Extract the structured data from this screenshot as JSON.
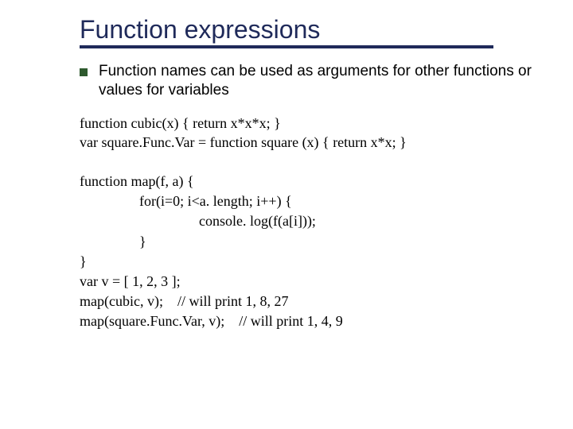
{
  "slide": {
    "title": "Function expressions",
    "bullet": {
      "text": "Function names can be used as arguments for other functions or values for variables"
    },
    "codeA": {
      "line1": "function cubic(x) { return x*x*x; }",
      "line2": "var square.Func.Var = function square (x) { return x*x; }"
    },
    "codeB": {
      "l1": "function map(f, a) {",
      "l2": "for(i=0; i<a. length; i++) {",
      "l3": "console. log(f(a[i]));",
      "l4": "}",
      "l5": "}",
      "l6": "var v = [ 1, 2, 3 ];",
      "l7": "map(cubic, v);    // will print 1, 8, 27",
      "l8": "map(square.Func.Var, v);    // will print 1, 4, 9"
    },
    "colors": {
      "title": "#1f2a5a",
      "underline": "#1f2a5a",
      "bullet": "#2e5a2e",
      "text": "#000000",
      "background": "#ffffff"
    },
    "fonts": {
      "title_family": "Verdana",
      "title_size_pt": 24,
      "body_family": "Verdana",
      "body_size_pt": 14,
      "code_family": "Times New Roman",
      "code_size_pt": 13
    }
  }
}
